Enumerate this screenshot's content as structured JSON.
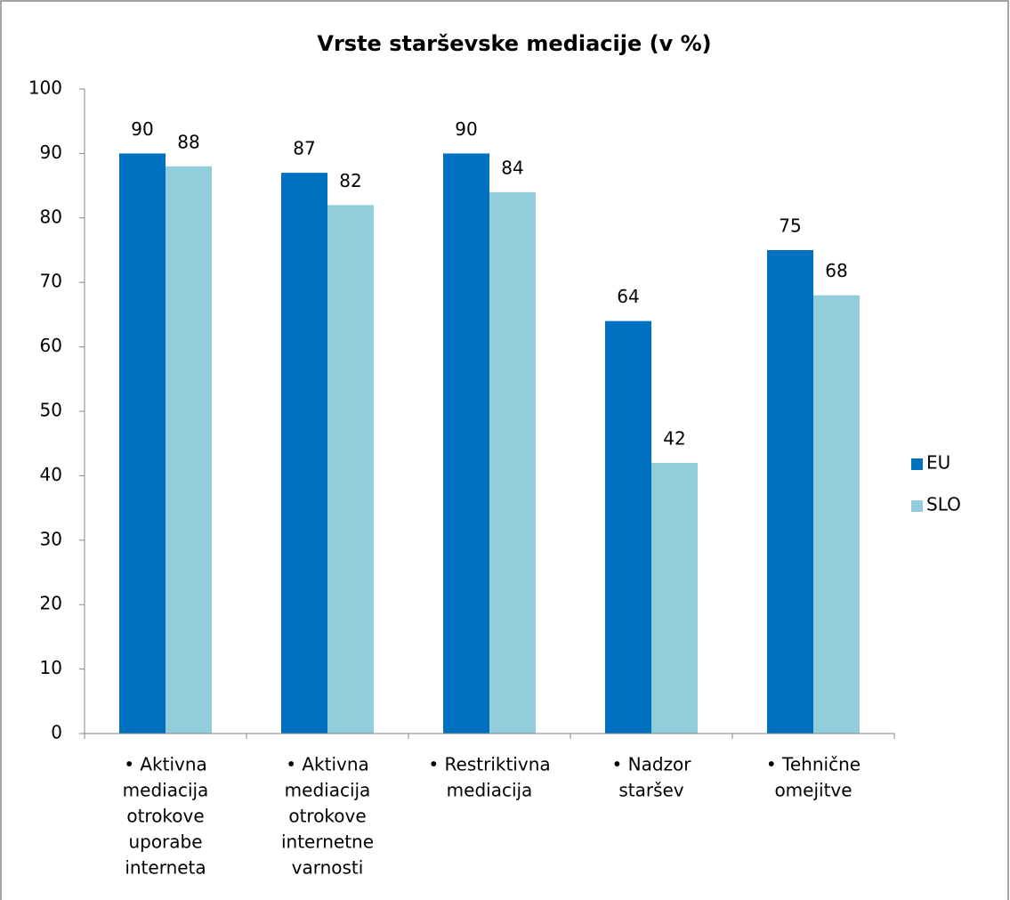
{
  "chart_data": {
    "type": "bar",
    "title": "Vrste starševske mediacije (v %)",
    "categories": [
      [
        "• Aktivna",
        "mediacija",
        "otrokove",
        "uporabe",
        "interneta"
      ],
      [
        "• Aktivna",
        "mediacija",
        "otrokove",
        "internetne",
        "varnosti"
      ],
      [
        "• Restriktivna",
        "mediacija"
      ],
      [
        "• Nadzor",
        "staršev"
      ],
      [
        "• Tehnične",
        "omejitve"
      ]
    ],
    "series": [
      {
        "name": "EU",
        "color": "#0070c0",
        "values": [
          90,
          87,
          90,
          64,
          75
        ]
      },
      {
        "name": "SLO",
        "color": "#92cddc",
        "values": [
          88,
          82,
          84,
          42,
          68
        ]
      }
    ],
    "ylim": [
      0,
      100
    ],
    "yticks": [
      0,
      10,
      20,
      30,
      40,
      50,
      60,
      70,
      80,
      90,
      100
    ],
    "grid": false,
    "legend": "right"
  }
}
